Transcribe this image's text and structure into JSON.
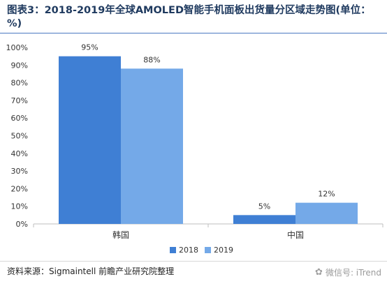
{
  "title": "图表3：2018-2019年全球AMOLED智能手机面板出货量分区域走势图(单位：%)",
  "source": "资料来源：Sigmaintell 前瞻产业研究院整理",
  "watermark": "微信号: iTrend",
  "colors": {
    "series_2018": "#3f7fd4",
    "series_2019": "#74a9e8",
    "axis": "#bfbfbf",
    "text": "#333333"
  },
  "chart_data": {
    "type": "bar",
    "title": "",
    "xlabel": "",
    "ylabel": "",
    "categories": [
      "韩国",
      "中国"
    ],
    "ylim": [
      0,
      100
    ],
    "yticks": [
      "0%",
      "10%",
      "20%",
      "30%",
      "40%",
      "50%",
      "60%",
      "70%",
      "80%",
      "90%",
      "100%"
    ],
    "series": [
      {
        "name": "2018",
        "values": [
          95,
          5
        ],
        "labels": [
          "95%",
          "5%"
        ]
      },
      {
        "name": "2019",
        "values": [
          88,
          12
        ],
        "labels": [
          "88%",
          "12%"
        ]
      }
    ],
    "legend_position": "bottom",
    "grid": false
  }
}
